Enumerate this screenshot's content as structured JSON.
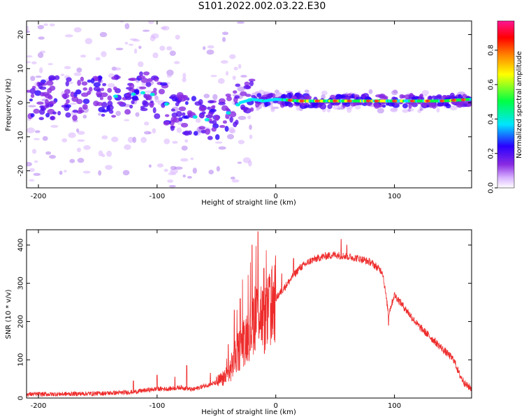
{
  "title": "S101.2022.002.03.22.E30",
  "chart_data": [
    {
      "type": "heatmap",
      "xlabel": "Height of straight line (km)",
      "ylabel": "Frequency (Hz)",
      "xlim": [
        -210,
        165
      ],
      "ylim": [
        -25,
        24
      ],
      "x_ticks": [
        -200,
        -100,
        0,
        100
      ],
      "y_ticks": [
        -20,
        -10,
        0,
        10,
        20
      ],
      "grid": false,
      "colorbar": {
        "label": "Normalized spectral amplitude",
        "range": [
          0.0,
          0.97
        ],
        "ticks": [
          "0.0",
          "0.2",
          "0.4",
          "0.6",
          "0.8"
        ],
        "colormap": [
          "#ffffff",
          "#d9b3ff",
          "#8a2be2",
          "#2a00ff",
          "#00e5ff",
          "#00ff44",
          "#ffff00",
          "#ff7f00",
          "#ff0000",
          "#ff1493"
        ]
      },
      "ridge": {
        "x": [
          -210,
          -190,
          -170,
          -150,
          -130,
          -110,
          -100,
          -90,
          -80,
          -70,
          -60,
          -50,
          -40,
          -30,
          -20,
          -10,
          0,
          20,
          50,
          80,
          110,
          140,
          165
        ],
        "y": [
          1,
          1.5,
          1,
          1.5,
          2,
          3,
          2,
          -1,
          -3,
          -4,
          -5,
          -5,
          -3,
          0,
          1,
          0.5,
          1,
          0.5,
          0.5,
          0.5,
          0.5,
          0.5,
          1
        ]
      }
    },
    {
      "type": "line",
      "xlabel": "Height of straight line (km)",
      "ylabel": "SNR (10 * v/v)",
      "xlim": [
        -210,
        165
      ],
      "ylim": [
        0,
        440
      ],
      "x_ticks": [
        -200,
        -100,
        0,
        100
      ],
      "y_ticks": [
        0,
        100,
        200,
        300,
        400
      ],
      "grid": false,
      "line_color": "#ee2b2b",
      "series": [
        {
          "x": [
            -210,
            -190,
            -170,
            -150,
            -130,
            -120,
            -110,
            -100,
            -90,
            -80,
            -70,
            -60,
            -50,
            -40,
            -35,
            -30,
            -25,
            -20,
            -15,
            -10,
            -5,
            0,
            10,
            20,
            30,
            40,
            50,
            60,
            70,
            80,
            90,
            95,
            100,
            110,
            120,
            130,
            140,
            150,
            155,
            160,
            165
          ],
          "values": [
            10,
            10,
            11,
            12,
            14,
            16,
            20,
            24,
            24,
            28,
            22,
            32,
            40,
            60,
            100,
            130,
            160,
            190,
            250,
            200,
            230,
            260,
            300,
            340,
            360,
            370,
            375,
            370,
            365,
            355,
            330,
            220,
            270,
            230,
            190,
            160,
            130,
            100,
            60,
            35,
            25
          ]
        }
      ],
      "spikes": [
        {
          "x": -120,
          "y": 45
        },
        {
          "x": -100,
          "y": 60
        },
        {
          "x": -85,
          "y": 55
        },
        {
          "x": -75,
          "y": 85
        },
        {
          "x": -55,
          "y": 65
        },
        {
          "x": -40,
          "y": 140
        },
        {
          "x": -35,
          "y": 230
        },
        {
          "x": -30,
          "y": 260
        },
        {
          "x": -20,
          "y": 400
        },
        {
          "x": -15,
          "y": 435
        },
        {
          "x": -10,
          "y": 340
        },
        {
          "x": -5,
          "y": 290
        },
        {
          "x": 5,
          "y": 325
        },
        {
          "x": 15,
          "y": 365
        },
        {
          "x": 55,
          "y": 415
        },
        {
          "x": 60,
          "y": 400
        },
        {
          "x": 95,
          "y": 190
        }
      ]
    }
  ]
}
